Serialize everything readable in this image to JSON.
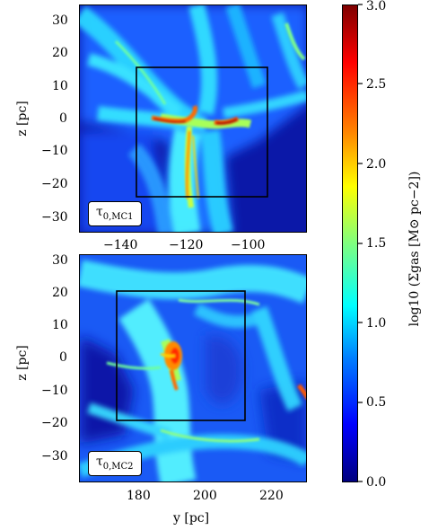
{
  "figure": {
    "panels": [
      {
        "id": "top",
        "tag_main": "τ",
        "tag_sub": "0,MC1",
        "y_ticks": [
          "30",
          "20",
          "10",
          "0",
          "−10",
          "−20",
          "−30"
        ],
        "x_ticks": [
          "−140",
          "−120",
          "−100"
        ],
        "ylabel": "z [pc]"
      },
      {
        "id": "bottom",
        "tag_main": "τ",
        "tag_sub": "0,MC2",
        "y_ticks": [
          "30",
          "20",
          "10",
          "0",
          "−10",
          "−20",
          "−30"
        ],
        "x_ticks": [
          "180",
          "200",
          "220"
        ],
        "ylabel": "z [pc]",
        "xlabel": "y [pc]"
      }
    ],
    "colorbar": {
      "ticks": [
        "3.0",
        "2.5",
        "2.0",
        "1.5",
        "1.0",
        "0.5",
        "0.0"
      ],
      "label": "log10 (Σgas [M⊙ pc−2])",
      "range": [
        0.0,
        3.0
      ],
      "colormap": "jet",
      "colors": [
        "#00007f",
        "#0000ff",
        "#007fff",
        "#00ffff",
        "#7fff7f",
        "#ffff00",
        "#ff7f00",
        "#ff0000",
        "#7f0000"
      ]
    }
  }
}
